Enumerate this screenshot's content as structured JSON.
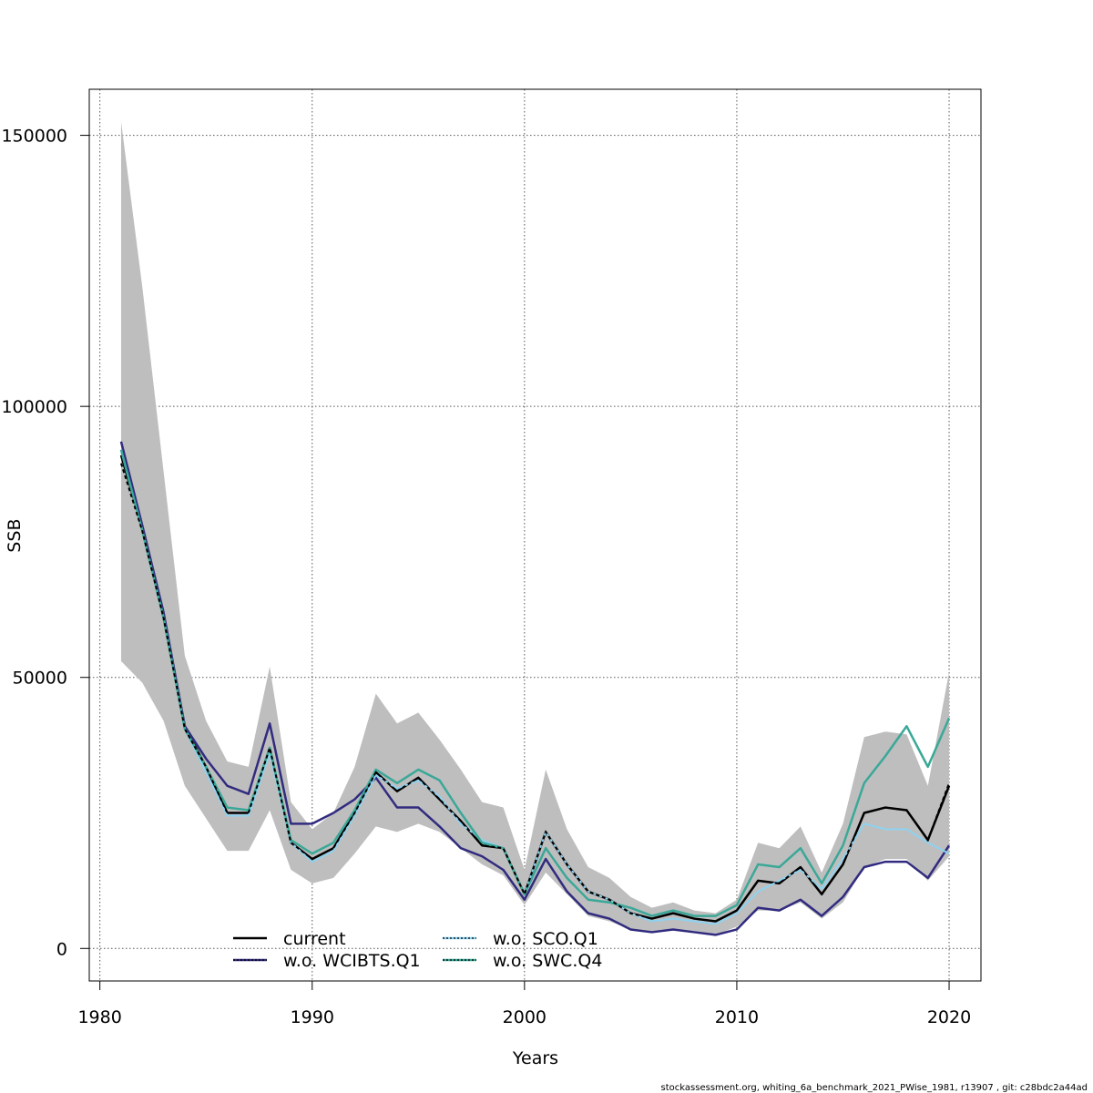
{
  "chart_data": {
    "type": "line",
    "xlabel": "Years",
    "ylabel": "SSB",
    "xlim": [
      1979.5,
      2021.5
    ],
    "ylim": [
      -6000,
      158500
    ],
    "x_ticks": [
      1980,
      1990,
      2000,
      2010,
      2020
    ],
    "y_ticks": [
      0,
      50000,
      100000,
      150000
    ],
    "x_tick_labels": [
      "1980",
      "1990",
      "2000",
      "2010",
      "2020"
    ],
    "y_tick_labels": [
      "0",
      "50000",
      "100000",
      "150000"
    ],
    "grid": true,
    "legend_position": "bottom-left",
    "x": [
      1981,
      1982,
      1983,
      1984,
      1985,
      1986,
      1987,
      1988,
      1989,
      1990,
      1991,
      1992,
      1993,
      1994,
      1995,
      1996,
      1997,
      1998,
      1999,
      2000,
      2001,
      2002,
      2003,
      2004,
      2005,
      2006,
      2007,
      2008,
      2009,
      2010,
      2011,
      2012,
      2013,
      2014,
      2015,
      2016,
      2017,
      2018,
      2019,
      2020
    ],
    "band": {
      "color": "#bebebe",
      "lower": [
        53000,
        49000,
        42000,
        30000,
        24000,
        18000,
        18000,
        25500,
        14500,
        12000,
        13000,
        17500,
        22500,
        21500,
        23000,
        21500,
        18500,
        15500,
        13500,
        8000,
        14000,
        10000,
        6000,
        5000,
        3500,
        3000,
        3500,
        3000,
        2500,
        4000,
        7000,
        7000,
        8500,
        5500,
        8500,
        15000,
        16500,
        16500,
        12500,
        17000
      ],
      "upper": [
        152500,
        122000,
        88000,
        54000,
        42000,
        34500,
        33500,
        52000,
        27000,
        22000,
        25000,
        33500,
        47000,
        41500,
        43500,
        38500,
        33000,
        27000,
        26000,
        14500,
        33000,
        22000,
        15000,
        13000,
        9500,
        7500,
        8500,
        7000,
        6500,
        9000,
        19500,
        18500,
        22500,
        14000,
        23000,
        39000,
        40000,
        39500,
        30000,
        51000
      ]
    },
    "series": [
      {
        "name": "current",
        "color": "#000000",
        "dash": "none",
        "width": 2.5,
        "values": [
          91000,
          77500,
          61000,
          41000,
          33500,
          25000,
          25000,
          37000,
          19500,
          16500,
          18500,
          25000,
          32500,
          29000,
          31500,
          27500,
          23500,
          19000,
          18500,
          10000,
          21500,
          15500,
          10500,
          9000,
          6500,
          5500,
          6500,
          5500,
          5000,
          7000,
          12500,
          12000,
          15000,
          10000,
          15500,
          25000,
          26000,
          25500,
          20000,
          30000
        ]
      },
      {
        "name": "w.o. WCIBTS.Q1",
        "color": "#312B7F",
        "dash": "none",
        "width": 2.5,
        "values": [
          93500,
          78000,
          62000,
          41000,
          35000,
          30000,
          28500,
          41500,
          23000,
          23000,
          25000,
          27500,
          31500,
          26000,
          26000,
          22500,
          18500,
          17000,
          14500,
          9000,
          16500,
          10500,
          6500,
          5500,
          3500,
          3000,
          3500,
          3000,
          2500,
          3500,
          7500,
          7000,
          9000,
          6000,
          9500,
          15000,
          16000,
          16000,
          13000,
          19000
        ]
      },
      {
        "name": "w.o. SCO.Q1",
        "color": "#8ED2F0",
        "dash": "none",
        "width": 2,
        "values": [
          92000,
          77000,
          61000,
          40500,
          32500,
          24500,
          24500,
          36000,
          19500,
          16000,
          18000,
          24500,
          32000,
          29500,
          31000,
          28000,
          23000,
          20000,
          18500,
          10000,
          21500,
          15500,
          10500,
          9000,
          6500,
          5000,
          5500,
          5000,
          4500,
          6500,
          10500,
          12500,
          14500,
          11000,
          16500,
          23000,
          22000,
          22000,
          19500,
          17500
        ]
      },
      {
        "name": "w.o. SWC.Q4",
        "color": "#3AA898",
        "dash": "none",
        "width": 2.5,
        "values": [
          92000,
          77000,
          61000,
          40500,
          33500,
          26000,
          25500,
          37000,
          20000,
          17500,
          19500,
          25500,
          33000,
          30500,
          33000,
          31000,
          25000,
          19500,
          18500,
          10000,
          18500,
          13000,
          9000,
          8500,
          7500,
          6000,
          7000,
          6000,
          6000,
          8000,
          15500,
          15000,
          18500,
          12000,
          19000,
          30500,
          35500,
          41000,
          33500,
          42500
        ]
      }
    ],
    "overlay_dashed": {
      "color": "#000000",
      "values": [
        89500,
        77000,
        61000,
        40500,
        33500,
        25000,
        25000,
        37000,
        19500,
        16500,
        18500,
        25000,
        32500,
        29000,
        31500,
        27500,
        23500,
        19000,
        18500,
        10000,
        21500,
        15500,
        10500,
        9000,
        6500,
        5500,
        6500,
        5500,
        5000,
        7000,
        12500,
        12000,
        15000,
        10000,
        15500,
        25000,
        26000,
        25500,
        20000,
        30500
      ]
    },
    "legend": [
      {
        "label": "current",
        "color": "#000000"
      },
      {
        "label": "w.o. WCIBTS.Q1",
        "color": "#312B7F"
      },
      {
        "label": "w.o. SCO.Q1",
        "color": "#8ED2F0"
      },
      {
        "label": "w.o. SWC.Q4",
        "color": "#3AA898"
      }
    ]
  },
  "footer": "stockassessment.org, whiting_6a_benchmark_2021_PWise_1981, r13907 , git: c28bdc2a44ad"
}
